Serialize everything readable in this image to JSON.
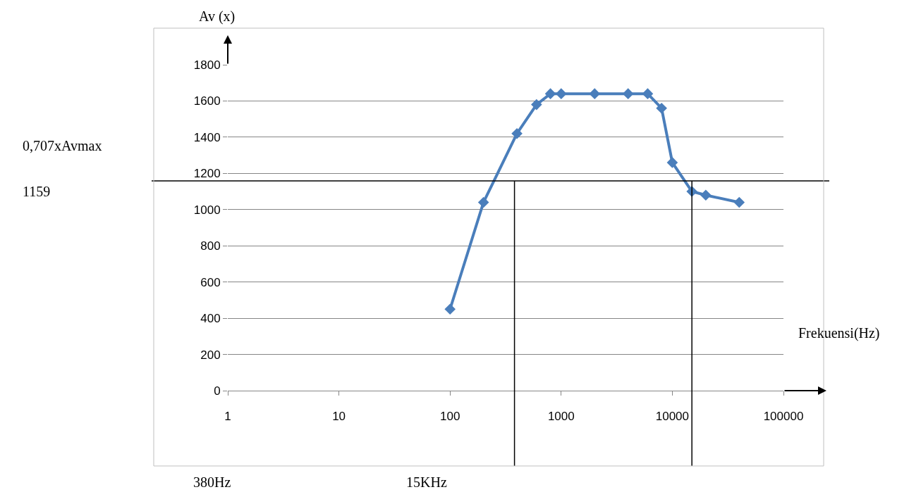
{
  "chart_data": {
    "type": "line",
    "xlabel": "Frekuensi(Hz)",
    "ylabel": "Av (x)",
    "x": [
      100,
      200,
      400,
      600,
      800,
      1000,
      2000,
      4000,
      6000,
      8000,
      10000,
      15000,
      20000,
      40000
    ],
    "series": [
      {
        "color": "#4a7ebb",
        "values": [
          450,
          1040,
          1420,
          1580,
          1640,
          1640,
          1640,
          1640,
          1640,
          1560,
          1260,
          1100,
          1080,
          1040
        ]
      }
    ],
    "log": "x",
    "xlim": [
      1,
      100000
    ],
    "xticks": [
      1,
      10,
      100,
      1000,
      10000,
      100000
    ],
    "ylim": [
      0,
      1800
    ],
    "yticks": [
      0,
      200,
      400,
      600,
      800,
      1000,
      1200,
      1400,
      1600,
      1800
    ],
    "grid": "y",
    "marker": "diamond",
    "line_style": "solid",
    "ref_lines": [
      {
        "axis": "y",
        "value": 1159,
        "color": "#000000"
      },
      {
        "axis": "x",
        "value": 380,
        "color": "#000000"
      },
      {
        "axis": "x",
        "value": 15000,
        "color": "#000000"
      }
    ],
    "annotations": [
      "0,707xAvmax",
      "1159",
      "380Hz",
      "15KHz"
    ]
  }
}
